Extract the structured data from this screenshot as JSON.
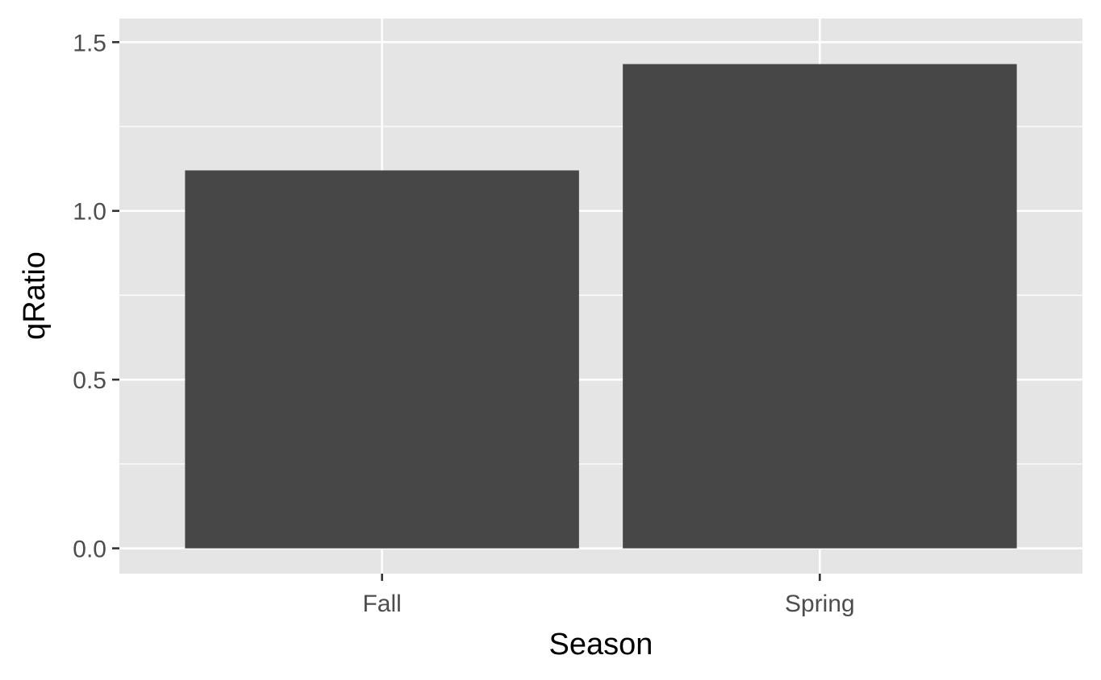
{
  "chart_data": {
    "type": "bar",
    "categories": [
      "Fall",
      "Spring"
    ],
    "values": [
      1.12,
      1.435
    ],
    "xlabel": "Season",
    "ylabel": "qRatio",
    "ylim": [
      -0.075,
      1.57
    ],
    "yticks": [
      0.0,
      0.5,
      1.0,
      1.5
    ],
    "ytick_labels": [
      "0.0",
      "0.5",
      "1.0",
      "1.5"
    ],
    "grid": true,
    "colors": {
      "panel": "#e5e5e5",
      "bar": "#474747",
      "grid": "#ffffff"
    }
  }
}
